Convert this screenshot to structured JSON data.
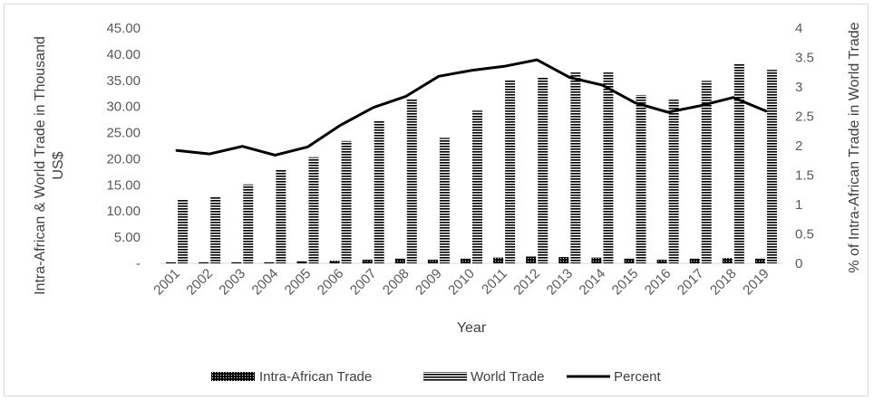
{
  "chart_data": {
    "type": "bar",
    "categories": [
      "2001",
      "2002",
      "2003",
      "2004",
      "2005",
      "2006",
      "2007",
      "2008",
      "2009",
      "2010",
      "2011",
      "2012",
      "2013",
      "2014",
      "2015",
      "2016",
      "2017",
      "2018",
      "2019"
    ],
    "series": [
      {
        "name": "Intra-African Trade",
        "kind": "bar",
        "axis": "left",
        "values": [
          0.2,
          0.2,
          0.2,
          0.2,
          0.4,
          0.5,
          0.7,
          0.9,
          0.7,
          0.9,
          1.1,
          1.3,
          1.2,
          1.1,
          0.9,
          0.7,
          0.9,
          1.0,
          0.9
        ]
      },
      {
        "name": "World Trade",
        "kind": "bar",
        "axis": "left",
        "values": [
          12.3,
          12.8,
          15.1,
          18.0,
          20.3,
          23.4,
          27.2,
          31.5,
          24.0,
          29.2,
          35.1,
          35.6,
          36.5,
          36.5,
          32.2,
          31.3,
          34.9,
          38.2,
          37.0
        ]
      },
      {
        "name": "Percent",
        "kind": "line",
        "axis": "right",
        "values": [
          1.92,
          1.86,
          1.99,
          1.84,
          1.98,
          2.35,
          2.65,
          2.84,
          3.18,
          3.28,
          3.35,
          3.46,
          3.16,
          3.03,
          2.73,
          2.57,
          2.68,
          2.82,
          2.59
        ]
      }
    ],
    "xlabel": "Year",
    "ylabel": "Intra-African & World Trade in Thousand US$",
    "ylabel_lines": [
      "Intra-African & World Trade in Thousand",
      "US$"
    ],
    "y2label": "% of Intra-African Trade in World Trade",
    "ylim": [
      0,
      45
    ],
    "y2lim": [
      0,
      4
    ],
    "yticks": [
      "-",
      "5.00",
      "10.00",
      "15.00",
      "20.00",
      "25.00",
      "30.00",
      "35.00",
      "40.00",
      "45.00"
    ],
    "ytick_values": [
      0,
      5,
      10,
      15,
      20,
      25,
      30,
      35,
      40,
      45
    ],
    "y2ticks": [
      "0",
      "0.5",
      "1",
      "1.5",
      "2",
      "2.5",
      "3",
      "3.5",
      "4"
    ],
    "y2tick_values": [
      0,
      0.5,
      1,
      1.5,
      2,
      2.5,
      3,
      3.5,
      4
    ],
    "grid": false,
    "legend": "bottom",
    "colors": {
      "intra": "#000000",
      "world": "#000000",
      "percent": "#000000",
      "tick": "#595959",
      "axis": "#d9d9d9"
    }
  }
}
